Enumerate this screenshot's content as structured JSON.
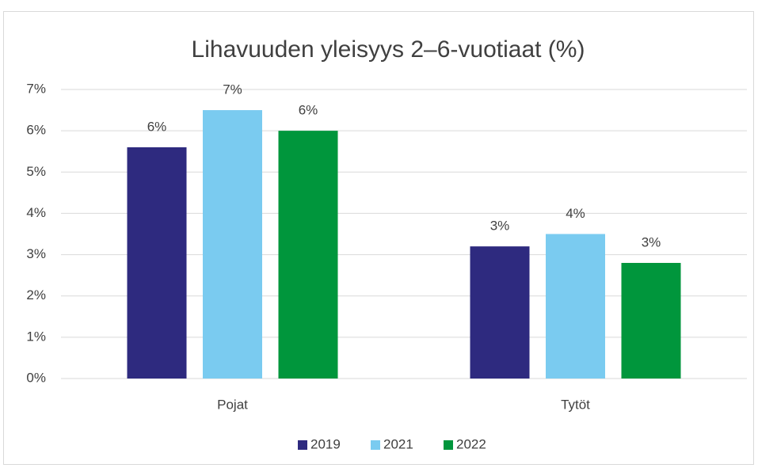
{
  "chart_data": {
    "type": "bar",
    "title": "Lihavuuden yleisyys 2–6-vuotiaat (%)",
    "categories": [
      "Pojat",
      "Tytöt"
    ],
    "series": [
      {
        "name": "2019",
        "color": "#2e2a7f",
        "values": [
          5.6,
          3.2
        ],
        "value_labels": [
          "6%",
          "3%"
        ]
      },
      {
        "name": "2021",
        "color": "#7acbf0",
        "values": [
          6.5,
          3.5
        ],
        "value_labels": [
          "7%",
          "4%"
        ]
      },
      {
        "name": "2022",
        "color": "#00963c",
        "values": [
          6.0,
          2.8
        ],
        "value_labels": [
          "6%",
          "3%"
        ]
      }
    ],
    "ylim": [
      0,
      7
    ],
    "yticks": [
      {
        "value": 0,
        "label": "0%"
      },
      {
        "value": 1,
        "label": "1%"
      },
      {
        "value": 2,
        "label": "2%"
      },
      {
        "value": 3,
        "label": "3%"
      },
      {
        "value": 4,
        "label": "4%"
      },
      {
        "value": 5,
        "label": "5%"
      },
      {
        "value": 6,
        "label": "6%"
      },
      {
        "value": 7,
        "label": "7%"
      }
    ],
    "grid": true,
    "legend": "bottom"
  }
}
